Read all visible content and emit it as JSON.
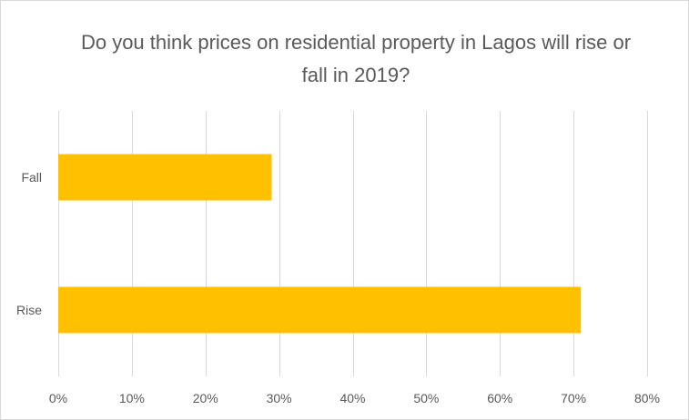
{
  "chart_data": {
    "type": "bar",
    "orientation": "horizontal",
    "title": "Do you think prices on residential property in Lagos will rise or fall in 2019?",
    "categories": [
      "Fall",
      "Rise"
    ],
    "values": [
      29,
      71
    ],
    "xlim": [
      0,
      80
    ],
    "x_ticks": [
      "0%",
      "10%",
      "20%",
      "30%",
      "40%",
      "50%",
      "60%",
      "70%",
      "80%"
    ],
    "x_tick_values": [
      0,
      10,
      20,
      30,
      40,
      50,
      60,
      70,
      80
    ],
    "grid": true,
    "legend": "none",
    "bar_color": "#ffc000",
    "grid_color": "#d9d9d9",
    "text_color": "#595959"
  }
}
